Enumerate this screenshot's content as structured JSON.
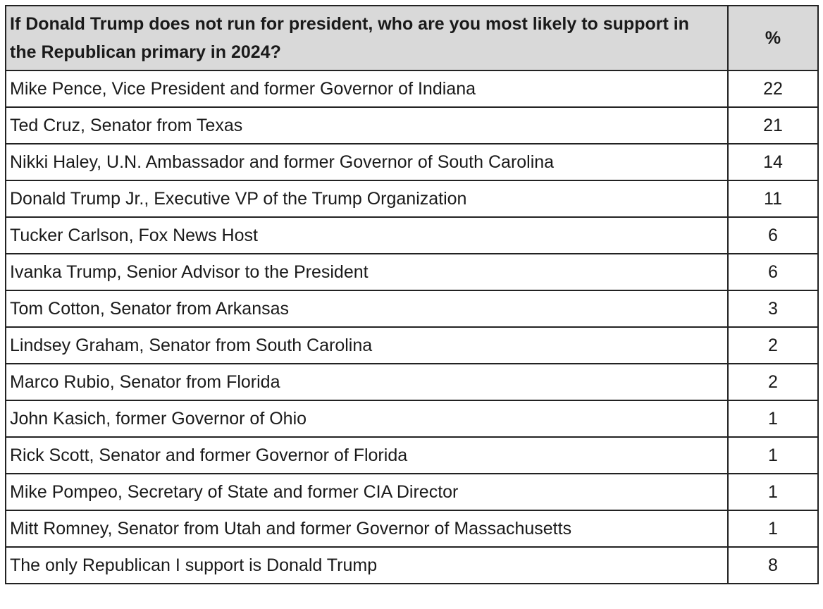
{
  "chart_data": {
    "type": "table",
    "columns": [
      "If Donald Trump does not run for president, who are you most likely to support in the Republican primary in 2024?",
      "%"
    ],
    "rows": [
      {
        "label": "Mike Pence, Vice President and former Governor of Indiana",
        "value": "22"
      },
      {
        "label": "Ted Cruz, Senator from Texas",
        "value": "21"
      },
      {
        "label": "Nikki Haley, U.N. Ambassador and former Governor of South Carolina",
        "value": "14"
      },
      {
        "label": "Donald Trump Jr., Executive VP of the Trump Organization",
        "value": "11"
      },
      {
        "label": "Tucker Carlson, Fox News Host",
        "value": "6"
      },
      {
        "label": "Ivanka Trump, Senior Advisor to the President",
        "value": "6"
      },
      {
        "label": "Tom Cotton, Senator from Arkansas",
        "value": "3"
      },
      {
        "label": "Lindsey Graham, Senator from South Carolina",
        "value": "2"
      },
      {
        "label": "Marco Rubio, Senator from Florida",
        "value": "2"
      },
      {
        "label": "John Kasich, former Governor of Ohio",
        "value": "1"
      },
      {
        "label": "Rick Scott, Senator and former Governor of Florida",
        "value": "1"
      },
      {
        "label": "Mike Pompeo, Secretary of State and former CIA Director",
        "value": "1"
      },
      {
        "label": "Mitt Romney, Senator from Utah and former Governor of Massachusetts",
        "value": "1"
      },
      {
        "label": "The only Republican I support is Donald Trump",
        "value": "8"
      }
    ],
    "colors": {
      "header_bg": "#d9d9d9",
      "border": "#222222",
      "text": "#1a1a1a"
    }
  }
}
